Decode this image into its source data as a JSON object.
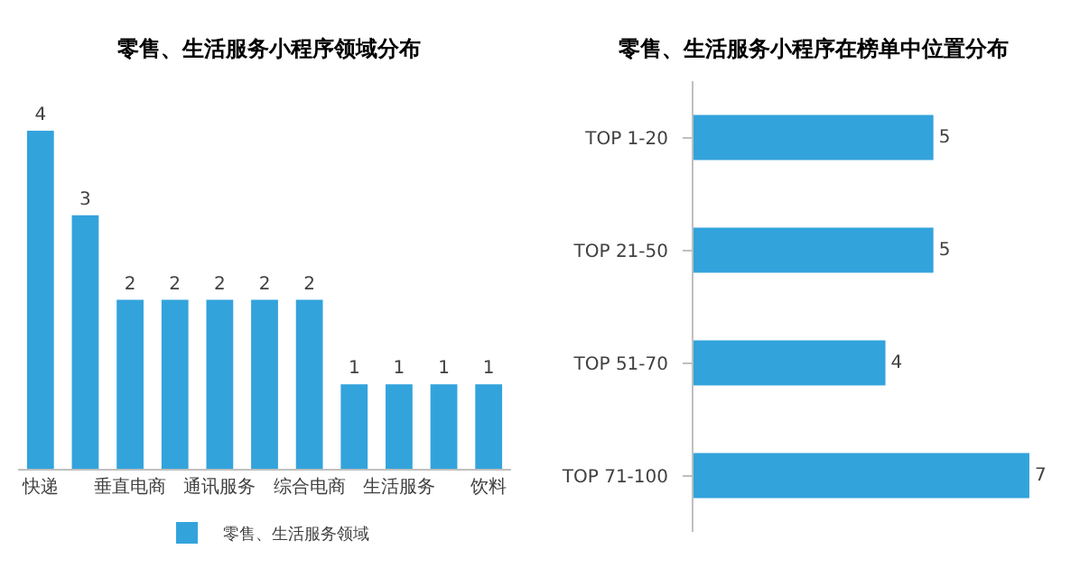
{
  "chart_data": [
    {
      "type": "bar",
      "title": "零售、生活服务小程序领域分布",
      "categories": [
        "快递",
        null,
        "垂直电商",
        null,
        "通讯服务",
        null,
        "综合电商",
        null,
        "生活服务",
        null,
        "饮料"
      ],
      "series": [
        {
          "name": "零售、生活服务领域",
          "color": "#33a3dc",
          "values": [
            4,
            3,
            2,
            2,
            2,
            2,
            2,
            1,
            1,
            1,
            1
          ]
        }
      ],
      "data_labels": true,
      "legend": "bottom",
      "tick_labels": "x"
    },
    {
      "type": "bar",
      "orientation": "horizontal",
      "title": "零售、生活服务小程序在榜单中位置分布",
      "categories": [
        "TOP 1-20",
        "TOP 21-50",
        "TOP 51-70",
        "TOP 71-100"
      ],
      "series": [
        {
          "color": "#33a3dc",
          "values": [
            5,
            5,
            4,
            7
          ]
        }
      ],
      "data_labels": true,
      "legend": false,
      "tick_labels": "y"
    }
  ]
}
